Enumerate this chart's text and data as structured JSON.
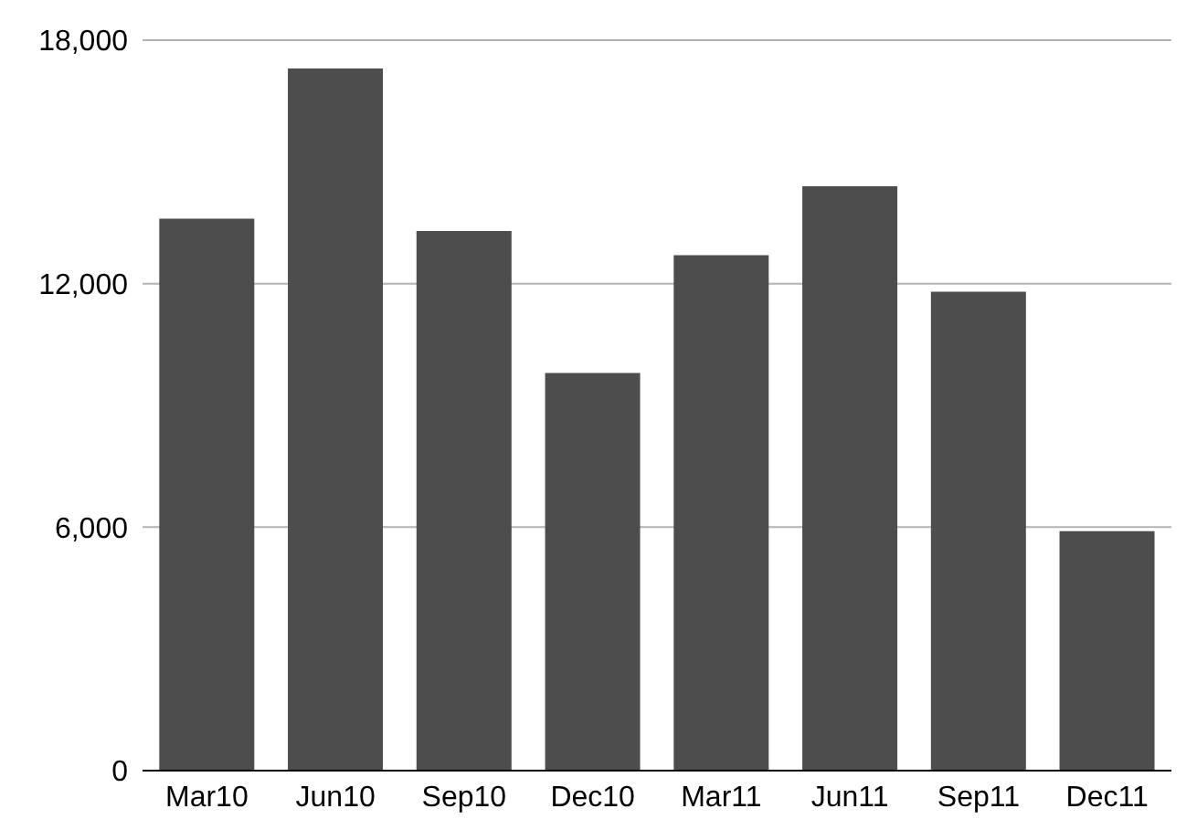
{
  "chart_data": {
    "type": "bar",
    "categories": [
      "Mar10",
      "Jun10",
      "Sep10",
      "Dec10",
      "Mar11",
      "Jun11",
      "Sep11",
      "Dec11"
    ],
    "values": [
      13600,
      17300,
      13300,
      9800,
      12700,
      14400,
      11800,
      5900
    ],
    "color": "#4d4d4d",
    "ylim": [
      0,
      18000
    ],
    "yticks": [
      0,
      {
        "value": 6000,
        "label": "6,000"
      },
      {
        "value": 12000,
        "label": "12,000"
      },
      {
        "value": 18000,
        "label": "18,000"
      }
    ],
    "grid": "y"
  }
}
